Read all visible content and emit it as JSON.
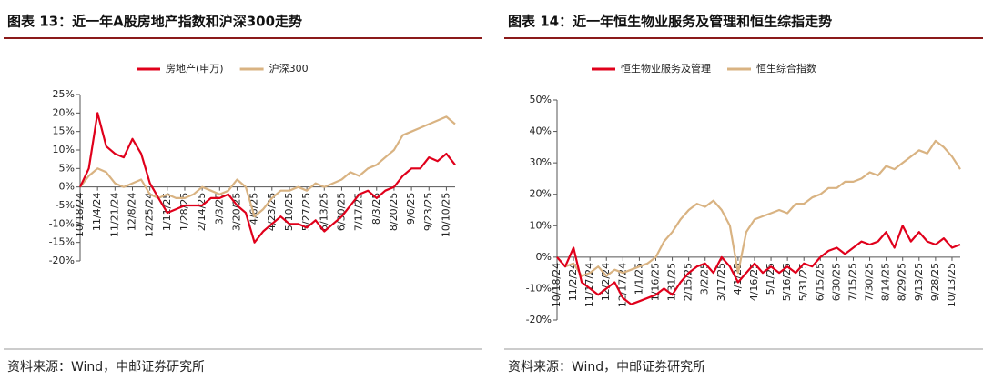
{
  "chart_data": [
    {
      "type": "line",
      "title": "图表 13：近一年A股房地产指数和沪深300走势",
      "source": "资料来源：Wind，中邮证券研究所",
      "categories": [
        "10/18/24",
        null,
        "11/4/24",
        null,
        "11/21/24",
        null,
        "12/8/24",
        null,
        "12/25/24",
        null,
        "1/11/25",
        null,
        "1/28/25",
        null,
        "2/14/25",
        null,
        "3/3/25",
        null,
        "3/20/25",
        null,
        "4/6/25",
        null,
        "4/23/25",
        null,
        "5/10/25",
        null,
        "5/27/25",
        null,
        "6/13/25",
        null,
        "6/30/25",
        null,
        "7/17/25",
        null,
        "8/3/25",
        null,
        "8/20/25",
        null,
        "9/6/25",
        null,
        "9/23/25",
        null,
        "10/10/25",
        null
      ],
      "series": [
        {
          "name": "房地产(申万)",
          "color": "#e0001b",
          "values": [
            0,
            5,
            20,
            11,
            9,
            8,
            13,
            9,
            1,
            -3,
            -7,
            -6,
            -5,
            -5,
            -5,
            -3,
            -3,
            -2,
            -5,
            -7,
            -15,
            -12,
            -10,
            -8,
            -10,
            -10,
            -11,
            -9,
            -12,
            -10,
            -8,
            -5,
            -2,
            -1,
            -3,
            -1,
            0,
            3,
            5,
            5,
            8,
            7,
            9,
            6
          ]
        },
        {
          "name": "沪深300",
          "color": "#d9b382",
          "values": [
            0,
            3,
            5,
            4,
            1,
            0,
            1,
            2,
            -2,
            -3,
            -2,
            -3,
            -3,
            -2,
            0,
            -1,
            -2,
            -1,
            2,
            0,
            -8,
            -6,
            -3,
            -1,
            -1,
            0,
            -1,
            1,
            0,
            1,
            2,
            4,
            3,
            5,
            6,
            8,
            10,
            14,
            15,
            16,
            17,
            18,
            19,
            17
          ]
        }
      ],
      "ylim": [
        -20,
        25
      ],
      "yticks": [
        {
          "value": -20,
          "label": "-20%"
        },
        {
          "value": -15,
          "label": "-15%"
        },
        {
          "value": -10,
          "label": "-10%"
        },
        {
          "value": -5,
          "label": "-5%"
        },
        {
          "value": 0,
          "label": "0%"
        },
        {
          "value": 5,
          "label": "5%"
        },
        {
          "value": 10,
          "label": "10%"
        },
        {
          "value": 15,
          "label": "15%"
        },
        {
          "value": 20,
          "label": "20%"
        },
        {
          "value": 25,
          "label": "25%"
        }
      ],
      "legend": "top"
    },
    {
      "type": "line",
      "title": "图表 14：近一年恒生物业服务及管理和恒生综指走势",
      "source": "资料来源：Wind，中邮证券研究所",
      "categories": [
        "10/18/24",
        null,
        "11/2/24",
        null,
        "11/17/24",
        null,
        "12/2/24",
        null,
        "12/17/24",
        null,
        "1/1/25",
        null,
        "1/16/25",
        null,
        "1/31/25",
        null,
        "2/15/25",
        null,
        "3/2/25",
        null,
        "3/17/25",
        null,
        "4/1/25",
        null,
        "4/16/25",
        null,
        "5/1/25",
        null,
        "5/16/25",
        null,
        "5/31/25",
        null,
        "6/15/25",
        null,
        "6/30/25",
        null,
        "7/15/25",
        null,
        "7/30/25",
        null,
        "8/14/25",
        null,
        "8/29/25",
        null,
        "9/13/25",
        null,
        "9/28/25",
        null,
        "10/13/25",
        null
      ],
      "series": [
        {
          "name": "恒生物业服务及管理",
          "color": "#e0001b",
          "values": [
            0,
            -3,
            3,
            -8,
            -10,
            -12,
            -10,
            -8,
            -13,
            -15,
            -14,
            -13,
            -12,
            -10,
            -12,
            -8,
            -5,
            -3,
            -2,
            -5,
            0,
            -3,
            -8,
            -5,
            -2,
            -5,
            -3,
            -5,
            -3,
            -5,
            -2,
            -3,
            0,
            2,
            3,
            1,
            3,
            5,
            4,
            5,
            8,
            3,
            10,
            5,
            8,
            5,
            4,
            6,
            3,
            4
          ]
        },
        {
          "name": "恒生综合指数",
          "color": "#d9b382",
          "values": [
            0,
            -3,
            -2,
            -6,
            -5,
            -3,
            -6,
            -4,
            -5,
            -4,
            -3,
            -2,
            0,
            5,
            8,
            12,
            15,
            17,
            16,
            18,
            15,
            10,
            -5,
            8,
            12,
            13,
            14,
            15,
            14,
            17,
            17,
            19,
            20,
            22,
            22,
            24,
            24,
            25,
            27,
            26,
            29,
            28,
            30,
            32,
            34,
            33,
            37,
            35,
            32,
            28
          ]
        }
      ],
      "ylim": [
        -20,
        50
      ],
      "yticks": [
        {
          "value": -20,
          "label": "-20%"
        },
        {
          "value": -10,
          "label": "-10%"
        },
        {
          "value": 0,
          "label": "0%"
        },
        {
          "value": 10,
          "label": "10%"
        },
        {
          "value": 20,
          "label": "20%"
        },
        {
          "value": 30,
          "label": "30%"
        },
        {
          "value": 40,
          "label": "40%"
        },
        {
          "value": 50,
          "label": "50%"
        }
      ],
      "legend": "top"
    }
  ]
}
